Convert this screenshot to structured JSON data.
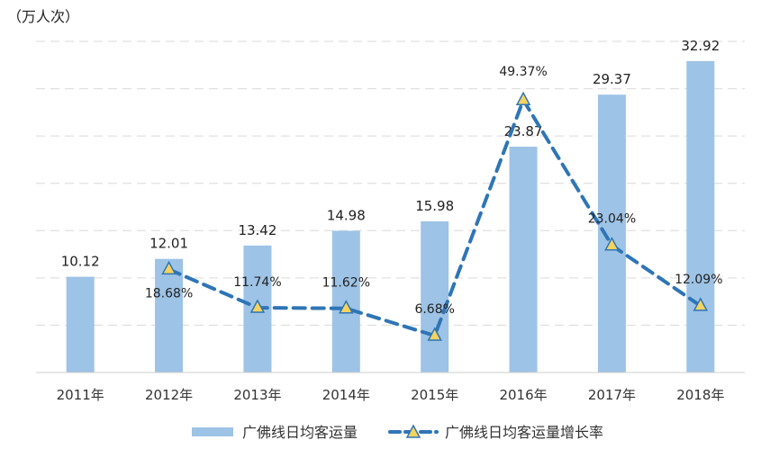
{
  "chart_data": {
    "type": "bar",
    "unit_label": "（万人次）",
    "categories": [
      "2011年",
      "2012年",
      "2013年",
      "2014年",
      "2015年",
      "2016年",
      "2017年",
      "2018年"
    ],
    "series": [
      {
        "name": "广佛线日均客运量",
        "type": "bar",
        "values": [
          10.12,
          12.01,
          13.42,
          14.98,
          15.98,
          23.87,
          29.37,
          32.92
        ],
        "labels": [
          "10.12",
          "12.01",
          "13.42",
          "14.98",
          "15.98",
          "23.87",
          "29.37",
          "32.92"
        ],
        "color": "#9DC3E6"
      },
      {
        "name": "广佛线日均客运量增长率",
        "type": "line",
        "style": "dashed",
        "marker": "triangle",
        "values": [
          null,
          18.68,
          11.74,
          11.62,
          6.68,
          49.37,
          23.04,
          12.09
        ],
        "labels": [
          "",
          "18.68%",
          "11.74%",
          "11.62%",
          "6.68%",
          "49.37%",
          "23.04%",
          "12.09%"
        ],
        "color": "#2E75B6",
        "marker_fill": "#F4D35E"
      }
    ],
    "ylim": [
      0,
      35
    ],
    "y2lim": [
      0,
      60
    ],
    "grid": true,
    "legend_position": "bottom"
  }
}
